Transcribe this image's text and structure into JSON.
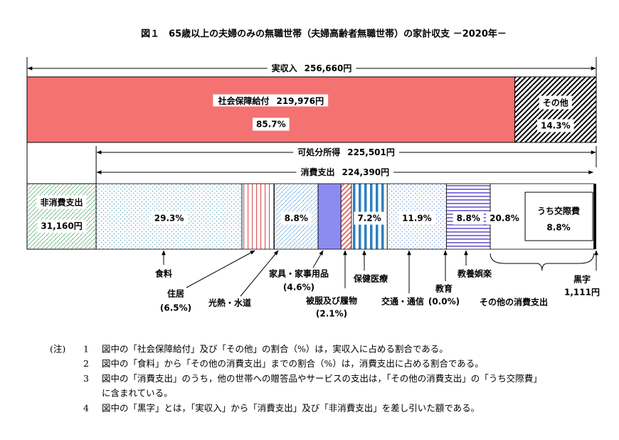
{
  "title": "図１　65歳以上の夫婦のみの無職世帯（夫婦高齢者無職世帯）の家計収支 －2020年－",
  "income": {
    "label": "実収入",
    "value": 256660,
    "value_label": "256,660円"
  },
  "income_parts": [
    {
      "name": "社会保障給付",
      "value_label": "219,976円",
      "share": 85.7,
      "share_label": "85.7%",
      "color": "#f47272"
    },
    {
      "name": "その他",
      "share": 14.3,
      "share_label": "14.3%",
      "color": "#000000"
    }
  ],
  "disposable": {
    "label": "可処分所得",
    "value_label": "225,501円"
  },
  "consumption": {
    "label": "消費支出",
    "value": 224390,
    "value_label": "224,390円"
  },
  "non_consumption": {
    "label": "非消費支出",
    "value": 31160,
    "value_label": "31,160円",
    "color": "#3c9a5a"
  },
  "surplus": {
    "label": "黒字",
    "value": 1111,
    "value_label": "1,111円",
    "color": "#000000"
  },
  "segments": [
    {
      "name": "食料",
      "share": 29.3,
      "share_label": "29.3%",
      "color": "#7fb8c8"
    },
    {
      "name": "住居",
      "share": 6.5,
      "share_label": "(6.5%)",
      "color": "#e05a5a"
    },
    {
      "name": "光熱・水道",
      "share": 8.8,
      "share_label": "8.8%",
      "color": "#5aa0d8"
    },
    {
      "name": "家具・家事用品",
      "share": 4.6,
      "share_label": "(4.6%)",
      "color": "#8c8cf0"
    },
    {
      "name": "被服及び履物",
      "share": 2.1,
      "share_label": "(2.1%)",
      "color": "#e07070"
    },
    {
      "name": "保健医療",
      "share": 7.2,
      "share_label": "7.2%",
      "color": "#2e7fc0"
    },
    {
      "name": "交通・通信",
      "share": 11.9,
      "share_label": "11.9%",
      "color": "#8aa8e0"
    },
    {
      "name": "教育",
      "share": 0.0,
      "share_label": "(0.0%)",
      "color": "#000000"
    },
    {
      "name": "教養娯楽",
      "share": 8.8,
      "share_label": "8.8%",
      "color": "#6a5acd"
    },
    {
      "name": "その他の消費支出",
      "share": 20.8,
      "share_label": "20.8%",
      "color": "#ffffff"
    }
  ],
  "kousai": {
    "label": "うち交際費",
    "value_label": "8.8%"
  },
  "notes": {
    "marker": "(注)",
    "items": [
      {
        "num": "1",
        "lines": [
          "図中の「社会保障給付」及び「その他」の割合（%）は，実収入に占める割合である。"
        ]
      },
      {
        "num": "2",
        "lines": [
          "図中の「食料」から「その他の消費支出」までの割合（%）は，消費支出に占める割合である。"
        ]
      },
      {
        "num": "3",
        "lines": [
          "図中の「消費支出」のうち，他の世帯への贈答品やサービスの支出は，「その他の消費支出」の「うち交際費」",
          "に含まれている。"
        ]
      },
      {
        "num": "4",
        "lines": [
          "図中の「黒字」とは，「実収入」から「消費支出」及び「非消費支出」を差し引いた額である。"
        ]
      }
    ]
  }
}
